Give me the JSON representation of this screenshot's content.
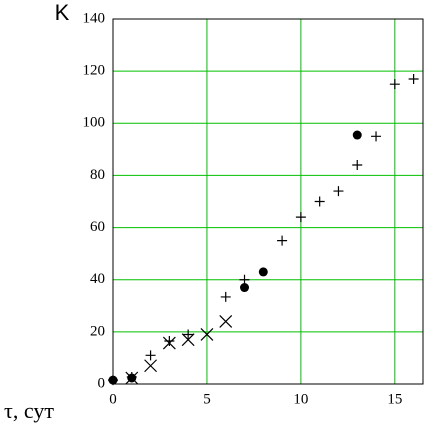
{
  "chart_data": {
    "type": "scatter",
    "y_label": "K",
    "x_label": "τ, сут",
    "xlim": [
      0,
      16.5
    ],
    "ylim": [
      0,
      140
    ],
    "xticks": [
      0,
      5,
      10,
      15
    ],
    "yticks": [
      0,
      20,
      40,
      60,
      80,
      100,
      120,
      140
    ],
    "grid": true,
    "grid_color": "#00c000",
    "series": [
      {
        "marker": "plus",
        "color": "#000000",
        "x": [
          0,
          1,
          2,
          3,
          4,
          6,
          7,
          9,
          10,
          11,
          12,
          13,
          14,
          15,
          16
        ],
        "values": [
          1.5,
          2.7,
          11,
          16.5,
          19,
          33.4,
          40,
          55,
          64,
          70,
          74,
          84,
          95,
          115,
          117
        ]
      },
      {
        "marker": "circle",
        "color": "#000000",
        "x": [
          0,
          1,
          7,
          8,
          13
        ],
        "values": [
          1.5,
          2.3,
          37,
          43,
          95.5
        ]
      },
      {
        "marker": "cross",
        "color": "#000000",
        "x": [
          1,
          2,
          3,
          4,
          5,
          6
        ],
        "values": [
          2.3,
          7,
          15.7,
          17,
          19,
          24
        ]
      }
    ]
  }
}
